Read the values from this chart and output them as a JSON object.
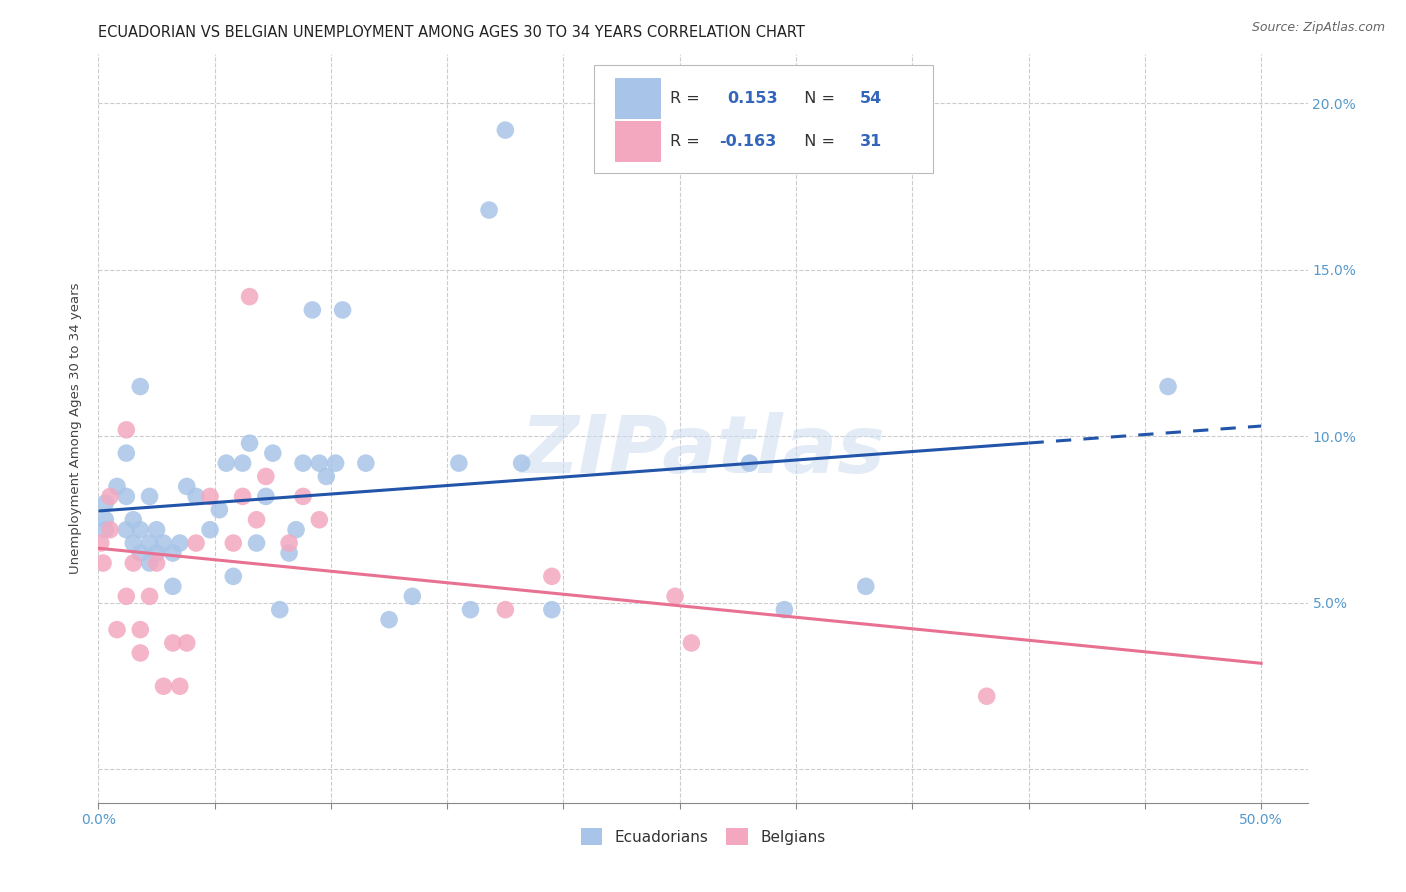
{
  "title": "ECUADORIAN VS BELGIAN UNEMPLOYMENT AMONG AGES 30 TO 34 YEARS CORRELATION CHART",
  "source": "Source: ZipAtlas.com",
  "ylabel": "Unemployment Among Ages 30 to 34 years",
  "xlim": [
    0.0,
    0.52
  ],
  "ylim": [
    -0.01,
    0.215
  ],
  "xticks": [
    0.0,
    0.05,
    0.1,
    0.15,
    0.2,
    0.25,
    0.3,
    0.35,
    0.4,
    0.45,
    0.5
  ],
  "yticks": [
    0.0,
    0.05,
    0.1,
    0.15,
    0.2
  ],
  "yticklabels_right": [
    "",
    "5.0%",
    "10.0%",
    "15.0%",
    "20.0%"
  ],
  "background_color": "#ffffff",
  "grid_color": "#cccccc",
  "ecuadorians_color": "#a8c4e8",
  "belgians_color": "#f4a8c0",
  "line_ecuadorians_color": "#2255aa",
  "line_belgians_color": "#e87090",
  "r_ecu": 0.153,
  "n_ecu": 54,
  "r_bel": -0.163,
  "n_bel": 31,
  "ecuadorians_x": [
    0.003,
    0.003,
    0.003,
    0.008,
    0.012,
    0.012,
    0.012,
    0.015,
    0.015,
    0.018,
    0.018,
    0.018,
    0.022,
    0.022,
    0.022,
    0.025,
    0.025,
    0.028,
    0.032,
    0.032,
    0.035,
    0.038,
    0.042,
    0.048,
    0.052,
    0.055,
    0.058,
    0.062,
    0.065,
    0.068,
    0.072,
    0.075,
    0.078,
    0.082,
    0.085,
    0.088,
    0.092,
    0.095,
    0.098,
    0.102,
    0.105,
    0.115,
    0.125,
    0.135,
    0.155,
    0.16,
    0.168,
    0.175,
    0.182,
    0.195,
    0.28,
    0.295,
    0.33,
    0.46
  ],
  "ecuadorians_y": [
    0.075,
    0.08,
    0.072,
    0.085,
    0.072,
    0.082,
    0.095,
    0.068,
    0.075,
    0.065,
    0.072,
    0.115,
    0.062,
    0.068,
    0.082,
    0.065,
    0.072,
    0.068,
    0.055,
    0.065,
    0.068,
    0.085,
    0.082,
    0.072,
    0.078,
    0.092,
    0.058,
    0.092,
    0.098,
    0.068,
    0.082,
    0.095,
    0.048,
    0.065,
    0.072,
    0.092,
    0.138,
    0.092,
    0.088,
    0.092,
    0.138,
    0.092,
    0.045,
    0.052,
    0.092,
    0.048,
    0.168,
    0.192,
    0.092,
    0.048,
    0.092,
    0.048,
    0.055,
    0.115
  ],
  "belgians_x": [
    0.001,
    0.002,
    0.005,
    0.005,
    0.008,
    0.012,
    0.012,
    0.015,
    0.018,
    0.018,
    0.022,
    0.025,
    0.028,
    0.032,
    0.035,
    0.038,
    0.042,
    0.048,
    0.058,
    0.062,
    0.065,
    0.068,
    0.072,
    0.082,
    0.088,
    0.095,
    0.175,
    0.195,
    0.248,
    0.255,
    0.382
  ],
  "belgians_y": [
    0.068,
    0.062,
    0.072,
    0.082,
    0.042,
    0.052,
    0.102,
    0.062,
    0.035,
    0.042,
    0.052,
    0.062,
    0.025,
    0.038,
    0.025,
    0.038,
    0.068,
    0.082,
    0.068,
    0.082,
    0.142,
    0.075,
    0.088,
    0.068,
    0.082,
    0.075,
    0.048,
    0.058,
    0.052,
    0.038,
    0.022
  ],
  "watermark": "ZIPatlas",
  "title_fontsize": 10.5,
  "axis_label_fontsize": 9.5,
  "tick_fontsize": 10,
  "source_fontsize": 9
}
